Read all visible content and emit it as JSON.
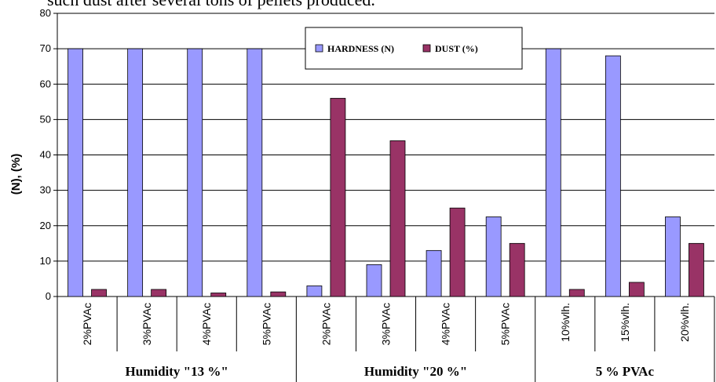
{
  "header_text": "such dust after several tons of pellets produced.",
  "chart_data": {
    "type": "bar",
    "ylabel": "(N), (%)",
    "ylim": [
      0,
      80
    ],
    "yticks": [
      0,
      10,
      20,
      30,
      40,
      50,
      60,
      70,
      80
    ],
    "grid": true,
    "legend_position": "top-center",
    "categories": [
      "2%PVAc",
      "3%PVAc",
      "4%PVAc",
      "5%PVAc",
      "2%PVAc",
      "3%PVAc",
      "4%PVAc",
      "5%PVAc",
      "10%vlh.",
      "15%vlh.",
      "20%vlh."
    ],
    "groups": [
      {
        "label": "Humidity \"13 %\"",
        "span": [
          0,
          3
        ]
      },
      {
        "label": "Humidity \"20 %\"",
        "span": [
          4,
          7
        ]
      },
      {
        "label": "5 % PVAc",
        "span": [
          8,
          10
        ]
      }
    ],
    "series": [
      {
        "name": "HARDNESS (N)",
        "color": "#9999ff",
        "values": [
          70,
          70,
          70,
          70,
          3,
          9,
          13,
          22.5,
          70,
          68,
          22.5
        ]
      },
      {
        "name": "DUST (%)",
        "color": "#993366",
        "values": [
          2,
          2,
          1,
          1.3,
          56,
          44,
          25,
          15,
          2,
          4,
          15
        ]
      }
    ]
  }
}
